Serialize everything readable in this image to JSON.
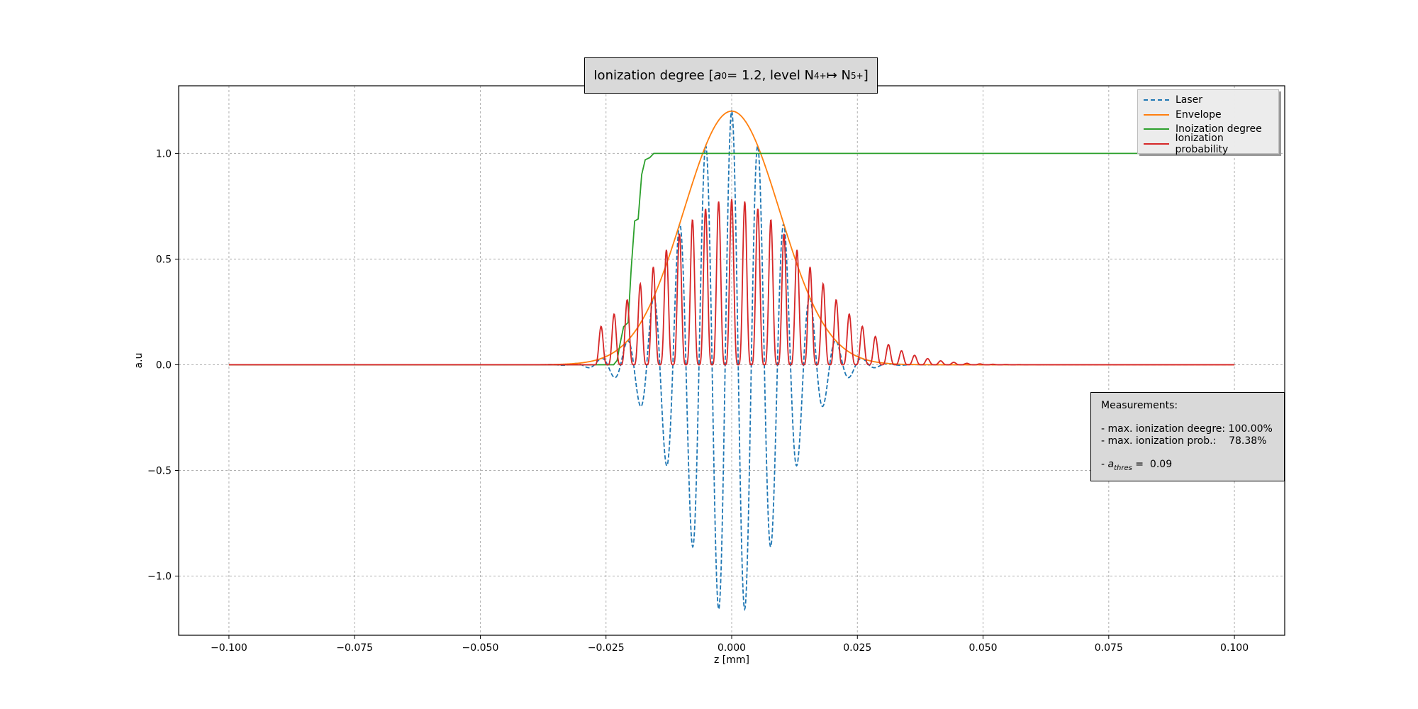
{
  "chart_data": {
    "type": "line",
    "title": {
      "prefix": "Ionization degree [ ",
      "a0_symbol": "a",
      "a0_sub": "0",
      "a0_value": " = 1.2, level N",
      "ion_from_sup": "4+",
      "arrow": " ↦ N",
      "ion_to_sup": "5+",
      "suffix": "]"
    },
    "xlabel": "z [mm]",
    "ylabel": "a.u",
    "xlim": [
      -0.11,
      0.11
    ],
    "ylim": [
      -1.28,
      1.32
    ],
    "x_ticks": [
      -0.1,
      -0.075,
      -0.05,
      -0.025,
      0.0,
      0.025,
      0.05,
      0.075,
      0.1
    ],
    "x_tick_labels": [
      "−0.100",
      "−0.075",
      "−0.050",
      "−0.025",
      "0.000",
      "0.025",
      "0.050",
      "0.075",
      "0.100"
    ],
    "y_ticks": [
      -1.0,
      -0.5,
      0.0,
      0.5,
      1.0
    ],
    "y_tick_labels": [
      "−1.0",
      "−0.5",
      "0.0",
      "0.5",
      "1.0"
    ],
    "grid": true,
    "legend_position": "top-right",
    "x_range": [
      -0.1,
      0.1
    ],
    "series": [
      {
        "name": "Laser",
        "color": "#1f77b4",
        "style": "dashed",
        "model": "a0*exp(-(z/w)^2)*cos(2*pi*z/lambda)",
        "a0": 1.2,
        "w": 0.0135,
        "lambda": 0.0052
      },
      {
        "name": "Envelope",
        "color": "#ff7f0e",
        "style": "solid",
        "model": "a0*exp(-(z/w)^2)",
        "a0": 1.2,
        "w": 0.0135
      },
      {
        "name": "Inoization degree",
        "color": "#2ca02c",
        "style": "solid",
        "points": [
          [
            -0.1,
            0.0
          ],
          [
            -0.0235,
            0.0
          ],
          [
            -0.0228,
            0.02
          ],
          [
            -0.0222,
            0.1
          ],
          [
            -0.0215,
            0.18
          ],
          [
            -0.0206,
            0.2
          ],
          [
            -0.02,
            0.45
          ],
          [
            -0.0193,
            0.68
          ],
          [
            -0.0186,
            0.69
          ],
          [
            -0.0179,
            0.9
          ],
          [
            -0.0172,
            0.97
          ],
          [
            -0.0163,
            0.98
          ],
          [
            -0.0155,
            1.0
          ],
          [
            0.1,
            1.0
          ]
        ]
      },
      {
        "name": "Ionization probability",
        "color": "#d62728",
        "style": "solid",
        "model": "pmax*exp(-(z/wp)^2)*|cos(2*pi*z/lambda)|^4, zero before z0",
        "pmax": 0.7838,
        "wp": 0.0215,
        "lambda": 0.0052,
        "z0": -0.027
      }
    ],
    "annotation": {
      "header": "Measurements:",
      "line1": "- max. ionization deegre: 100.00%",
      "line2": "- max. ionization prob.:    78.38%",
      "line3_prefix": "- ",
      "line3_symbol": "a",
      "line3_sub": "thres",
      "line3_value": " =  0.09"
    }
  }
}
